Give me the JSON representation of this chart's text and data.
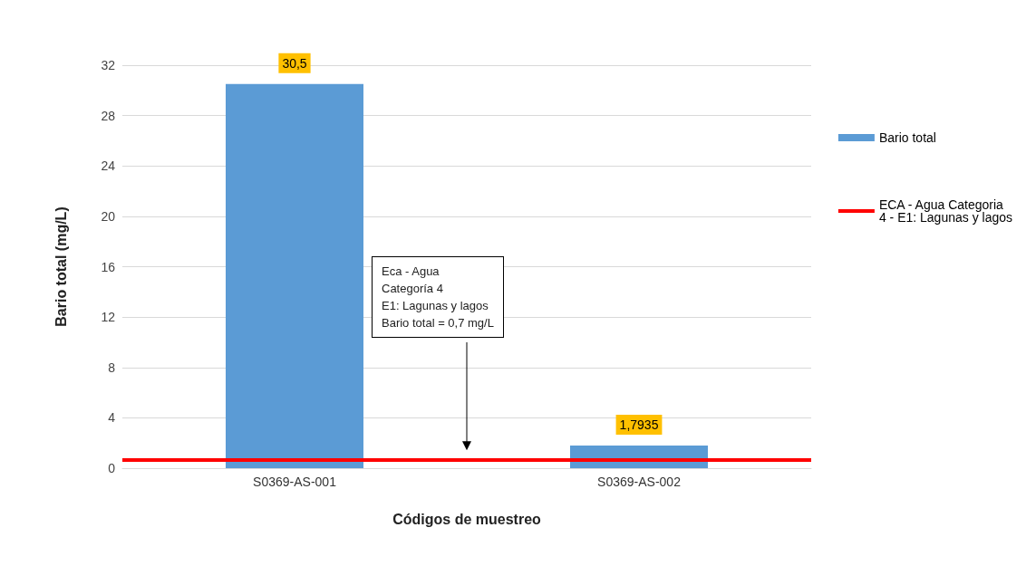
{
  "chart_data": {
    "type": "bar",
    "xlabel": "Códigos de muestreo",
    "ylabel": "Bario total (mg/L)",
    "categories": [
      "S0369-AS-001",
      "S0369-AS-002"
    ],
    "series": [
      {
        "name": "Bario total",
        "color": "#5b9bd5",
        "values": [
          30.5,
          1.7935
        ],
        "value_labels": [
          "30,5",
          "1,7935"
        ]
      }
    ],
    "ylim": [
      0,
      32
    ],
    "yticks": [
      0,
      4,
      8,
      12,
      16,
      20,
      24,
      28,
      32
    ],
    "grid": "y",
    "legend": "right",
    "ref_lines": [
      {
        "axis": "y",
        "value": 0.7,
        "label": "ECA - Agua Categoria 4 - E1: Lagunas y lagos",
        "color": "#ff0000",
        "line_style": "solid"
      }
    ],
    "annotations": [
      "Eca - Agua\nCategoría 4\nE1: Lagunas y lagos\nBario total = 0,7 mg/L"
    ]
  }
}
